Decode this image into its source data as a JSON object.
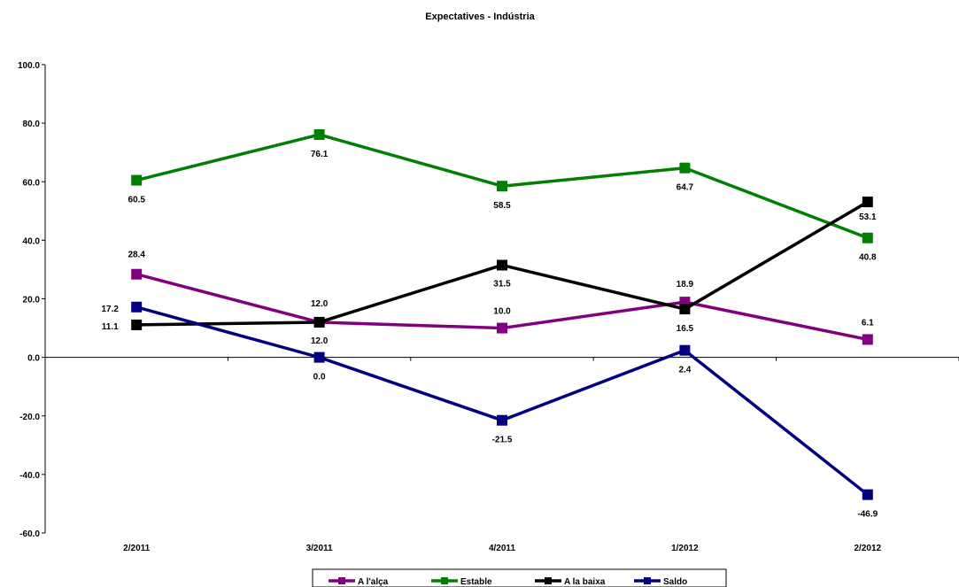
{
  "chart_data": {
    "type": "line",
    "title": "Expectatives - Indústria",
    "xlabel": "",
    "ylabel": "",
    "categories": [
      "2/2011",
      "3/2011",
      "4/2011",
      "1/2012",
      "2/2012"
    ],
    "ylim": [
      -60,
      100
    ],
    "ytick_labels": [
      "100.0",
      "80.0",
      "60.0",
      "40.0",
      "20.0",
      "0.0",
      "-20.0",
      "-40.0",
      "-60.0"
    ],
    "grid": false,
    "legend_position": "bottom",
    "series": [
      {
        "name": "A l'alça",
        "color": "#800080",
        "values": [
          28.4,
          12.0,
          10.0,
          18.9,
          6.1
        ],
        "labels": [
          "28.4",
          "12.0",
          "10.0",
          "18.9",
          "6.1"
        ]
      },
      {
        "name": "Estable",
        "color": "#008000",
        "values": [
          60.5,
          76.1,
          58.5,
          64.7,
          40.8
        ],
        "labels": [
          "60.5",
          "76.1",
          "58.5",
          "64.7",
          "40.8"
        ]
      },
      {
        "name": "A la baixa",
        "color": "#000000",
        "values": [
          11.1,
          12.0,
          31.5,
          16.5,
          53.1
        ],
        "labels": [
          "11.1",
          "12.0",
          "31.5",
          "16.5",
          "53.1"
        ]
      },
      {
        "name": "Saldo",
        "color": "#000080",
        "values": [
          17.2,
          0.0,
          -21.5,
          2.4,
          -46.9
        ],
        "labels": [
          "17.2",
          "0.0",
          "-21.5",
          "2.4",
          "-46.9"
        ]
      }
    ]
  }
}
